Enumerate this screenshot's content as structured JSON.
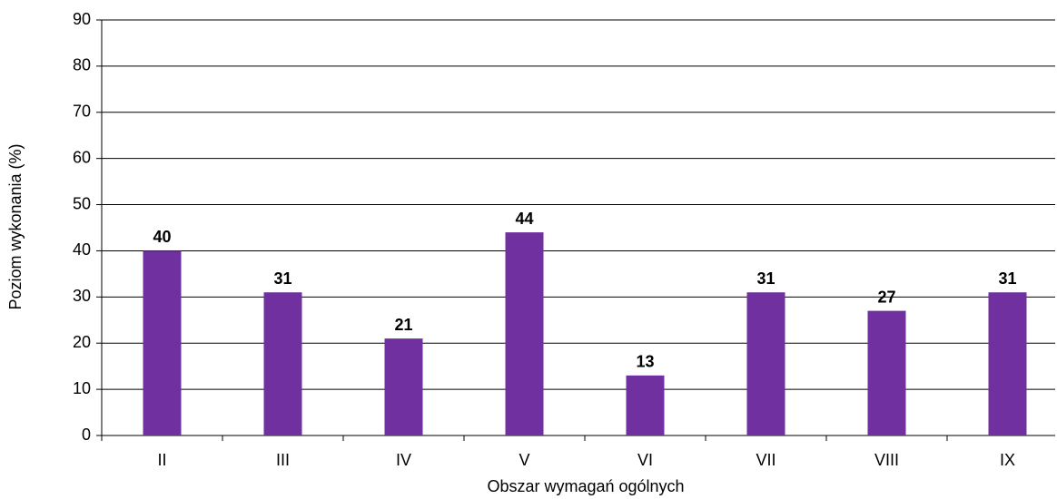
{
  "chart_data": {
    "type": "bar",
    "x_label": "Obszar wymagań ogólnych",
    "y_label": "Poziom wykonania (%)",
    "categories": [
      "II",
      "III",
      "IV",
      "V",
      "VI",
      "VII",
      "VIII",
      "IX"
    ],
    "values": [
      40,
      31,
      21,
      44,
      13,
      31,
      27,
      31
    ],
    "color": "#7030a0",
    "ylim": [
      0,
      90
    ],
    "yticks": [
      0,
      10,
      20,
      30,
      40,
      50,
      60,
      70,
      80,
      90
    ],
    "grid": true
  }
}
